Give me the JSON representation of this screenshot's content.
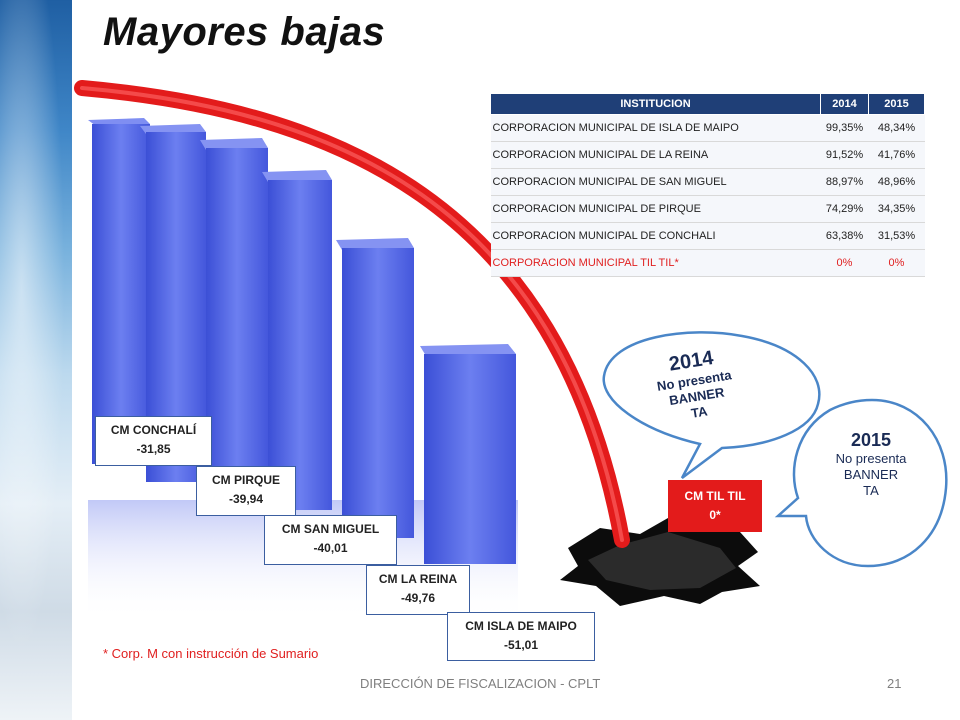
{
  "title": "Mayores bajas",
  "table": {
    "headers": [
      "INSTITUCION",
      "2014",
      "2015"
    ],
    "rows": [
      [
        "CORPORACION MUNICIPAL DE ISLA DE MAIPO",
        "99,35%",
        "48,34%"
      ],
      [
        "CORPORACION MUNICIPAL DE LA REINA",
        "91,52%",
        "41,76%"
      ],
      [
        "CORPORACION MUNICIPAL DE SAN MIGUEL",
        "88,97%",
        "48,96%"
      ],
      [
        "CORPORACION MUNICIPAL DE PIRQUE",
        "74,29%",
        "34,35%"
      ],
      [
        "CORPORACION MUNICIPAL DE CONCHALI",
        "63,38%",
        "31,53%"
      ],
      [
        "CORPORACION MUNICIPAL TIL TIL*",
        "0%",
        "0%"
      ]
    ]
  },
  "labels": [
    {
      "name": "CM CONCHALÍ",
      "value": "-31,85"
    },
    {
      "name": "CM PIRQUE",
      "value": "-39,94"
    },
    {
      "name": "CM SAN MIGUEL",
      "value": "-40,01"
    },
    {
      "name": "CM LA REINA",
      "value": "-49,76"
    },
    {
      "name": "CM ISLA DE MAIPO",
      "value": "-51,01"
    }
  ],
  "tiltil": {
    "name": "CM TIL TIL",
    "value": "0*"
  },
  "bubble2014": {
    "year": "2014",
    "line1": "No presenta",
    "line2": "BANNER",
    "line3": "TA"
  },
  "bubble2015": {
    "year": "2015",
    "line1": "No presenta",
    "line2": "BANNER",
    "line3": "TA"
  },
  "note": "* Corp. M con instrucción de Sumario",
  "footer": "DIRECCIÓN DE FISCALIZACION - CPLT",
  "page_number": "21",
  "colors": {
    "header": "#1f3f77",
    "arrow": "#e31b1b",
    "bars": "#4a5de0",
    "bubble_border": "#4a86c8"
  }
}
